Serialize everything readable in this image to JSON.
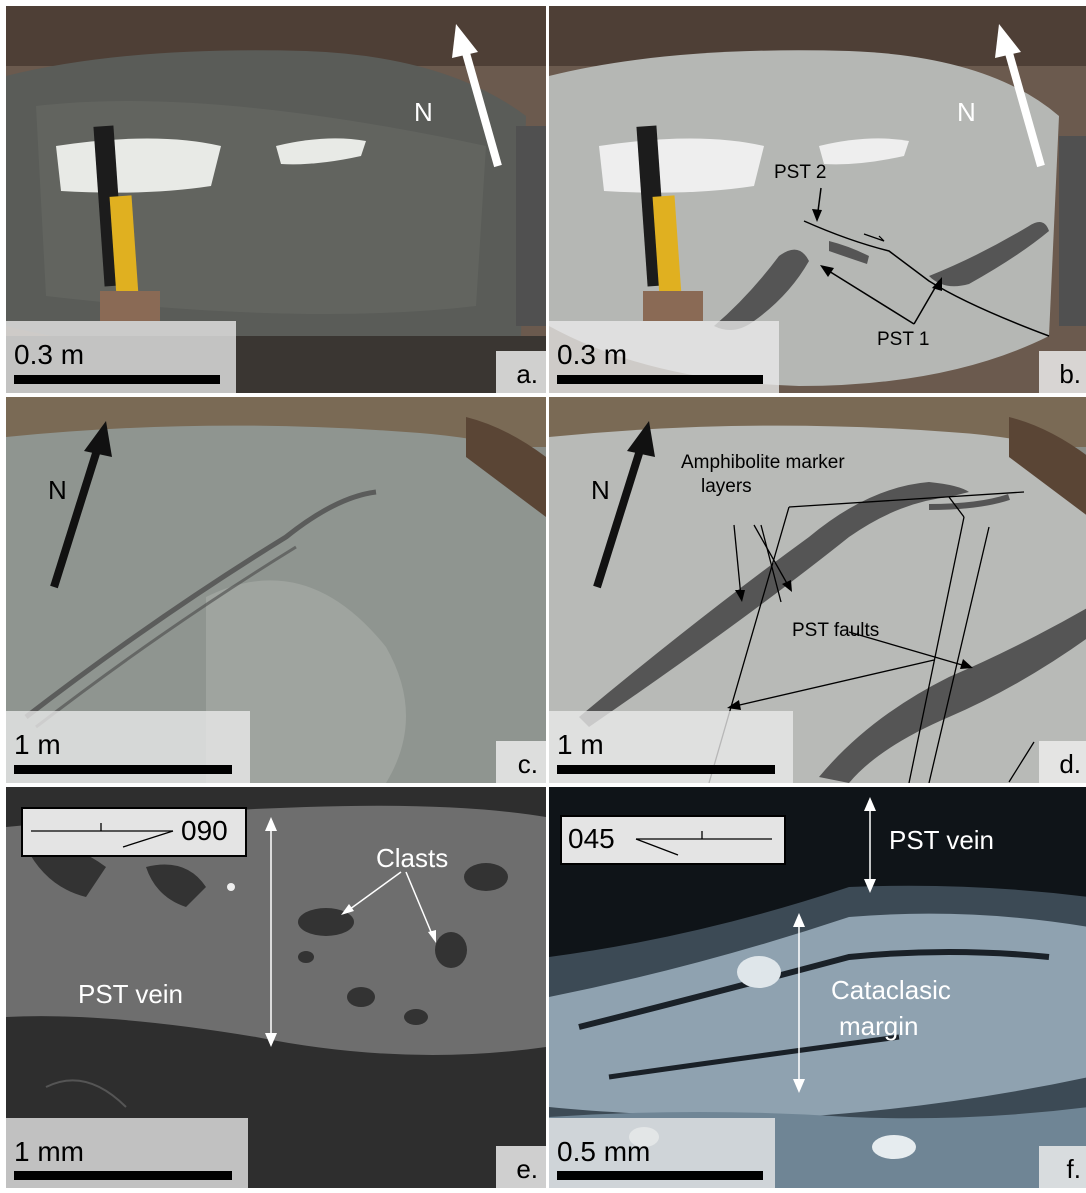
{
  "panels": {
    "a": {
      "scale": "0.3 m",
      "letter": "a.",
      "north": "N"
    },
    "b": {
      "scale": "0.3 m",
      "letter": "b.",
      "north": "N",
      "pst2": "PST 2",
      "pst1": "PST 1"
    },
    "c": {
      "scale": "1 m",
      "letter": "c.",
      "north": "N"
    },
    "d": {
      "scale": "1 m",
      "letter": "d.",
      "north": "N",
      "amph_line1": "Amphibolite marker",
      "amph_line2": "layers",
      "pst_faults": "PST faults"
    },
    "e": {
      "scale": "1 mm",
      "letter": "e.",
      "orientation": "090",
      "clasts": "Clasts",
      "pst_vein": "PST vein"
    },
    "f": {
      "scale": "0.5 mm",
      "letter": "f.",
      "orientation": "045",
      "pst_vein": "PST vein",
      "cat_line1": "Cataclasic",
      "cat_line2": "margin"
    }
  },
  "colors": {
    "rock_dark": "#5a5c58",
    "rock_grey": "#b5b7b4",
    "marker_grey": "#555555",
    "sem_bg": "#6e6e6e",
    "sem_dark": "#2e2e2e",
    "thin_section": "#0f1418"
  }
}
